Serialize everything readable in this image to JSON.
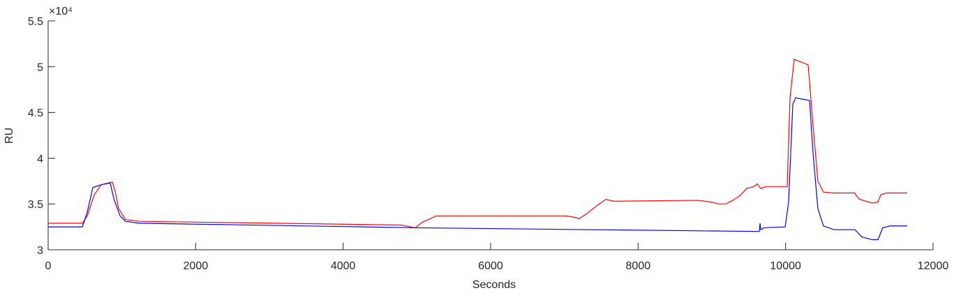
{
  "chart_data": {
    "type": "line",
    "x_label": "Seconds",
    "y_label": "RU",
    "y_scale_label": "×10⁴",
    "xlim": [
      0,
      12000
    ],
    "xticks": [
      0,
      2000,
      4000,
      6000,
      8000,
      10000,
      12000
    ],
    "ylim": [
      3,
      5.5
    ],
    "yticks": [
      3,
      3.5,
      4,
      4.5,
      5,
      5.5
    ],
    "grid": false,
    "series": [
      {
        "color": "#ff0000",
        "x": [
          0,
          464,
          530,
          625,
          719,
          814,
          871,
          908,
          956,
          1050,
          1240,
          3132,
          4789,
          4855,
          4978,
          5073,
          5262,
          5972,
          7013,
          7108,
          7202,
          7297,
          7439,
          7562,
          7676,
          8811,
          9001,
          9095,
          9190,
          9285,
          9379,
          9474,
          9569,
          9616,
          9663,
          9738,
          9994,
          10022,
          10060,
          10117,
          10211,
          10306,
          10372,
          10438,
          10514,
          10656,
          10940,
          10969,
          11006,
          11177,
          11252,
          11290,
          11366,
          11650
        ],
        "values": [
          3.29,
          3.29,
          3.37,
          3.6,
          3.71,
          3.73,
          3.74,
          3.64,
          3.45,
          3.33,
          3.31,
          3.29,
          3.27,
          3.26,
          3.24,
          3.3,
          3.37,
          3.37,
          3.37,
          3.36,
          3.34,
          3.39,
          3.48,
          3.55,
          3.53,
          3.54,
          3.52,
          3.5,
          3.5,
          3.54,
          3.59,
          3.67,
          3.69,
          3.72,
          3.67,
          3.69,
          3.69,
          3.69,
          4.66,
          5.08,
          5.05,
          5.02,
          4.36,
          3.75,
          3.63,
          3.62,
          3.62,
          3.58,
          3.55,
          3.51,
          3.52,
          3.6,
          3.62,
          3.62
        ]
      },
      {
        "color": "#0000ff",
        "x": [
          0,
          464,
          530,
          606,
          719,
          842,
          890,
          975,
          1050,
          1240,
          5026,
          9644,
          9654,
          9663,
          9710,
          9994,
          10041,
          10098,
          10136,
          10325,
          10372,
          10438,
          10514,
          10656,
          10940,
          11035,
          11177,
          11252,
          11318,
          11413,
          11650
        ],
        "values": [
          3.25,
          3.25,
          3.41,
          3.68,
          3.71,
          3.73,
          3.56,
          3.37,
          3.31,
          3.29,
          3.24,
          3.2,
          3.29,
          3.22,
          3.24,
          3.25,
          3.52,
          4.59,
          4.66,
          4.63,
          4.06,
          3.45,
          3.26,
          3.22,
          3.22,
          3.14,
          3.11,
          3.11,
          3.24,
          3.26,
          3.26
        ]
      }
    ]
  }
}
